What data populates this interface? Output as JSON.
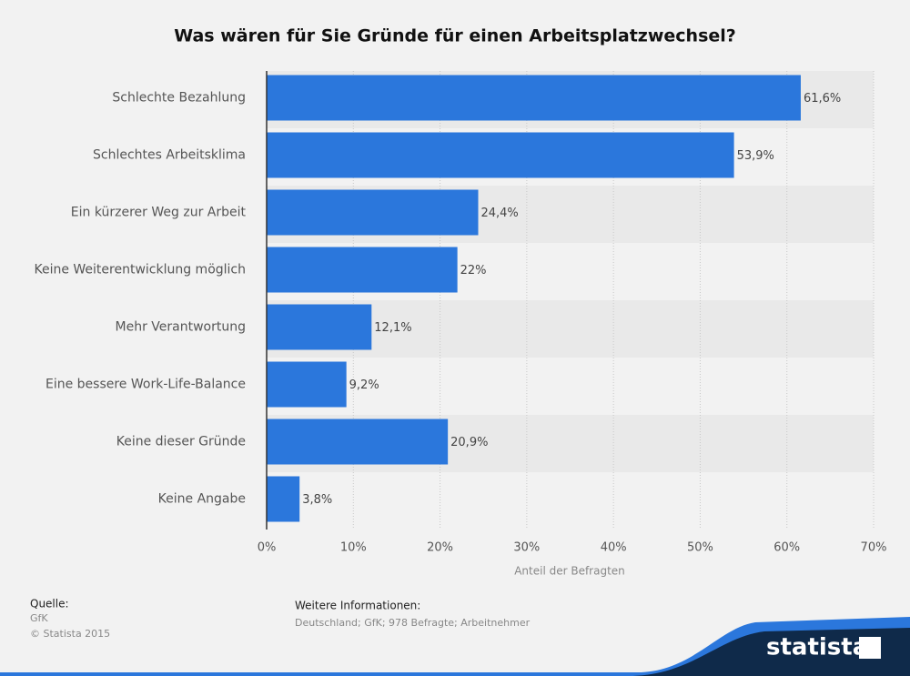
{
  "chart_data": {
    "type": "bar",
    "orientation": "horizontal",
    "title": "Was wären für Sie Gründe für einen Arbeitsplatzwechsel?",
    "x_label": "Anteil der Befragten",
    "categories": [
      "Schlechte Bezahlung",
      "Schlechtes Arbeitsklima",
      "Ein kürzerer Weg zur Arbeit",
      "Keine Weiterentwicklung möglich",
      "Mehr Verantwortung",
      "Eine bessere Work-Life-Balance",
      "Keine dieser Gründe",
      "Keine Angabe"
    ],
    "values": [
      61.6,
      53.9,
      24.4,
      22,
      12.1,
      9.2,
      20.9,
      3.8
    ],
    "value_labels": [
      "61,6%",
      "53,9%",
      "24,4%",
      "22%",
      "12,1%",
      "9,2%",
      "20,9%",
      "3,8%"
    ],
    "color": "#2b77dc",
    "xlim": [
      0,
      70
    ],
    "xticks": [
      {
        "value": 0,
        "label": "0%"
      },
      {
        "value": 10,
        "label": "10%"
      },
      {
        "value": 20,
        "label": "20%"
      },
      {
        "value": 30,
        "label": "30%"
      },
      {
        "value": 40,
        "label": "40%"
      },
      {
        "value": 50,
        "label": "50%"
      },
      {
        "value": 60,
        "label": "60%"
      },
      {
        "value": 70,
        "label": "70%"
      }
    ],
    "grid": true
  },
  "footer": {
    "source_title": "Quelle:",
    "source": "GfK",
    "copyright": "© Statista 2015",
    "info_title": "Weitere Informationen:",
    "info": "Deutschland; GfK; 978 Befragte; Arbeitnehmer",
    "logo": "statista"
  }
}
